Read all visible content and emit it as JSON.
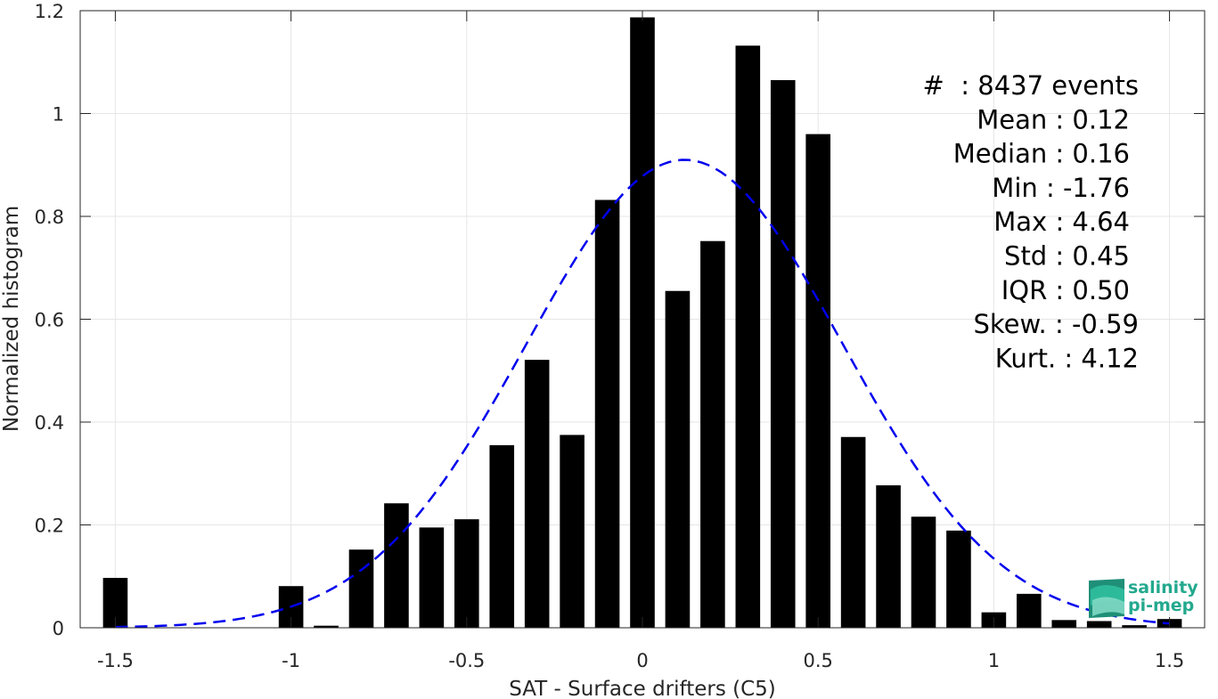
{
  "chart_data": {
    "type": "bar",
    "xlabel": "SAT - Surface drifters (C5)",
    "ylabel": "Normalized histogram",
    "xlim": [
      -1.6,
      1.6
    ],
    "ylim": [
      0,
      1.2
    ],
    "xticks": [
      "-1.5",
      "-1",
      "-0.5",
      "0",
      "0.5",
      "1",
      "1.5"
    ],
    "xtick_values": [
      -1.5,
      -1,
      -0.5,
      0,
      0.5,
      1,
      1.5
    ],
    "yticks": [
      "0",
      "0.2",
      "0.4",
      "0.6",
      "0.8",
      "1",
      "1.2"
    ],
    "ytick_values": [
      0,
      0.2,
      0.4,
      0.6,
      0.8,
      1,
      1.2
    ],
    "grid": true,
    "bar_color": "#000000",
    "bar_width": 0.07,
    "bars": {
      "x": [
        -1.5,
        -1.0,
        -0.9,
        -0.8,
        -0.7,
        -0.6,
        -0.5,
        -0.4,
        -0.3,
        -0.2,
        -0.1,
        0.0,
        0.1,
        0.2,
        0.3,
        0.4,
        0.5,
        0.6,
        0.7,
        0.8,
        0.9,
        1.0,
        1.1,
        1.2,
        1.3,
        1.4,
        1.5
      ],
      "values": [
        0.097,
        0.081,
        0.004,
        0.152,
        0.242,
        0.195,
        0.211,
        0.355,
        0.521,
        0.375,
        0.832,
        1.187,
        0.655,
        0.752,
        1.132,
        1.065,
        0.96,
        0.371,
        0.277,
        0.216,
        0.189,
        0.03,
        0.066,
        0.015,
        0.013,
        0.005,
        0.017
      ]
    },
    "fit_curve": {
      "style": "dashed",
      "color": "#0000ee",
      "mean": 0.12,
      "std": 0.45,
      "peak": 0.91,
      "x_range": [
        -1.5,
        1.5
      ]
    },
    "stats_lines": [
      "#  : 8437 events",
      "Mean : 0.12",
      "Median : 0.16",
      "Min : -1.76",
      "Max : 4.64",
      "Std : 0.45",
      "IQR : 0.50",
      "Skew. : -0.59",
      "Kurt. : 4.12"
    ]
  },
  "logo": {
    "line1": "salinity",
    "line2": "pi-mep",
    "color": "#23a98e"
  }
}
